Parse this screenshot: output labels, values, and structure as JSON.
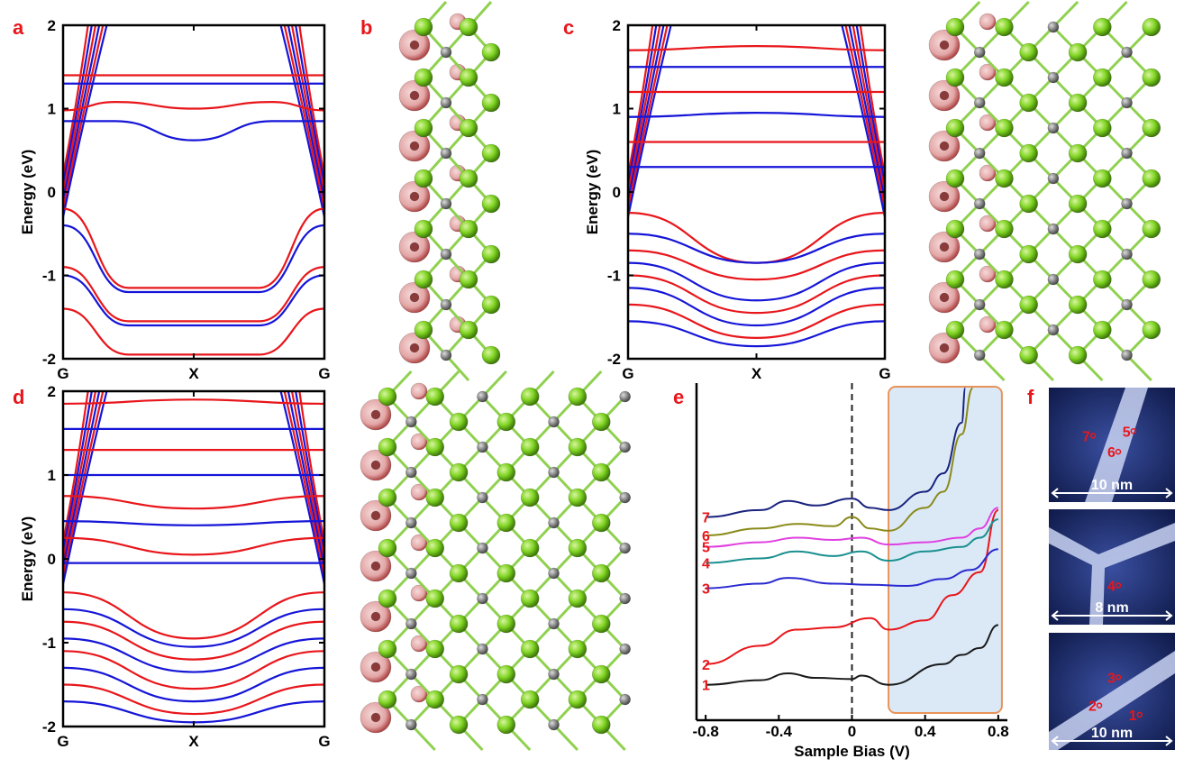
{
  "panel_labels": {
    "a": "a",
    "b": "b",
    "c": "c",
    "d": "d",
    "e": "e",
    "f": "f"
  },
  "colors": {
    "spin_up": "#e8161b",
    "spin_down": "#1515d8",
    "atom_light": "#7ed321",
    "atom_dark": "#808080",
    "atom_red": "#b84a4a",
    "stm_bg": "#1a2a6c"
  },
  "chart_data": [
    {
      "id": "a",
      "type": "line",
      "xlabel": "",
      "ylabel": "Energy (eV)",
      "ylim": [
        -2,
        2
      ],
      "yticks": [
        "-2",
        "-1",
        "0",
        "1",
        "2"
      ],
      "xtick_labels": [
        "G",
        "X",
        "G"
      ],
      "series": [
        {
          "values": [
            [
              0,
              1.4
            ],
            [
              0.5,
              1.4
            ],
            [
              1,
              1.4
            ]
          ]
        },
        {
          "values": [
            [
              0,
              1.3
            ],
            [
              0.5,
              1.3
            ],
            [
              1,
              1.3
            ]
          ]
        },
        {
          "values": [
            [
              0,
              0.98
            ],
            [
              0.2,
              1.08
            ],
            [
              0.5,
              1.0
            ],
            [
              0.8,
              1.08
            ],
            [
              1,
              0.98
            ]
          ]
        },
        {
          "values": [
            [
              0,
              0.85
            ],
            [
              0.2,
              0.85
            ],
            [
              0.5,
              0.62
            ],
            [
              0.8,
              0.85
            ],
            [
              1,
              0.85
            ]
          ]
        },
        {
          "values": [
            [
              0,
              -0.2
            ],
            [
              0.25,
              -1.15
            ],
            [
              0.5,
              -1.15
            ],
            [
              0.75,
              -1.15
            ],
            [
              1,
              -0.2
            ]
          ]
        },
        {
          "values": [
            [
              0,
              -0.4
            ],
            [
              0.25,
              -1.2
            ],
            [
              0.5,
              -1.2
            ],
            [
              0.75,
              -1.2
            ],
            [
              1,
              -0.4
            ]
          ]
        },
        {
          "values": [
            [
              0,
              -0.9
            ],
            [
              0.25,
              -1.55
            ],
            [
              0.5,
              -1.55
            ],
            [
              0.75,
              -1.55
            ],
            [
              1,
              -0.9
            ]
          ]
        },
        {
          "values": [
            [
              0,
              -1.0
            ],
            [
              0.25,
              -1.6
            ],
            [
              0.5,
              -1.6
            ],
            [
              0.75,
              -1.6
            ],
            [
              1,
              -1.0
            ]
          ]
        },
        {
          "values": [
            [
              0,
              -1.4
            ],
            [
              0.25,
              -1.95
            ],
            [
              0.5,
              -1.95
            ],
            [
              0.75,
              -1.95
            ],
            [
              1,
              -1.4
            ]
          ]
        }
      ]
    },
    {
      "id": "c",
      "type": "line",
      "xlabel": "",
      "ylabel": "Energy (eV)",
      "ylim": [
        -2,
        2
      ],
      "yticks": [
        "-2",
        "-1",
        "0",
        "1",
        "2"
      ],
      "xtick_labels": [
        "G",
        "X",
        "G"
      ],
      "series": [
        {
          "values": [
            [
              0,
              1.7
            ],
            [
              0.5,
              1.75
            ],
            [
              1,
              1.7
            ]
          ]
        },
        {
          "values": [
            [
              0,
              1.5
            ],
            [
              0.5,
              1.5
            ],
            [
              1,
              1.5
            ]
          ]
        },
        {
          "values": [
            [
              0,
              1.2
            ],
            [
              0.5,
              1.2
            ],
            [
              1,
              1.2
            ]
          ]
        },
        {
          "values": [
            [
              0,
              0.9
            ],
            [
              0.5,
              0.95
            ],
            [
              1,
              0.9
            ]
          ]
        },
        {
          "values": [
            [
              0,
              0.6
            ],
            [
              0.5,
              0.6
            ],
            [
              1,
              0.6
            ]
          ]
        },
        {
          "values": [
            [
              0,
              0.3
            ],
            [
              0.5,
              0.3
            ],
            [
              1,
              0.3
            ]
          ]
        },
        {
          "values": [
            [
              0,
              -0.25
            ],
            [
              0.5,
              -0.85
            ],
            [
              1,
              -0.25
            ]
          ]
        },
        {
          "values": [
            [
              0,
              -0.5
            ],
            [
              0.5,
              -0.85
            ],
            [
              1,
              -0.5
            ]
          ]
        },
        {
          "values": [
            [
              0,
              -0.7
            ],
            [
              0.5,
              -1.05
            ],
            [
              1,
              -0.7
            ]
          ]
        },
        {
          "values": [
            [
              0,
              -0.85
            ],
            [
              0.5,
              -1.3
            ],
            [
              1,
              -0.85
            ]
          ]
        },
        {
          "values": [
            [
              0,
              -1.0
            ],
            [
              0.5,
              -1.45
            ],
            [
              1,
              -1.0
            ]
          ]
        },
        {
          "values": [
            [
              0,
              -1.15
            ],
            [
              0.5,
              -1.6
            ],
            [
              1,
              -1.15
            ]
          ]
        },
        {
          "values": [
            [
              0,
              -1.35
            ],
            [
              0.5,
              -1.75
            ],
            [
              1,
              -1.35
            ]
          ]
        },
        {
          "values": [
            [
              0,
              -1.55
            ],
            [
              0.5,
              -1.85
            ],
            [
              1,
              -1.55
            ]
          ]
        }
      ]
    },
    {
      "id": "d",
      "type": "line",
      "xlabel": "",
      "ylabel": "Energy (eV)",
      "ylim": [
        -2,
        2
      ],
      "yticks": [
        "-2",
        "-1",
        "0",
        "1",
        "2"
      ],
      "xtick_labels": [
        "G",
        "X",
        "G"
      ],
      "series": [
        {
          "values": [
            [
              0,
              1.85
            ],
            [
              0.5,
              1.9
            ],
            [
              1,
              1.85
            ]
          ]
        },
        {
          "values": [
            [
              0,
              1.55
            ],
            [
              0.5,
              1.55
            ],
            [
              1,
              1.55
            ]
          ]
        },
        {
          "values": [
            [
              0,
              1.3
            ],
            [
              0.5,
              1.3
            ],
            [
              1,
              1.3
            ]
          ]
        },
        {
          "values": [
            [
              0,
              1.0
            ],
            [
              0.5,
              1.0
            ],
            [
              1,
              1.0
            ]
          ]
        },
        {
          "values": [
            [
              0,
              0.75
            ],
            [
              0.5,
              0.6
            ],
            [
              1,
              0.75
            ]
          ]
        },
        {
          "values": [
            [
              0,
              0.45
            ],
            [
              0.5,
              0.4
            ],
            [
              1,
              0.45
            ]
          ]
        },
        {
          "values": [
            [
              0,
              0.25
            ],
            [
              0.5,
              0.05
            ],
            [
              1,
              0.25
            ]
          ]
        },
        {
          "values": [
            [
              0,
              -0.05
            ],
            [
              0.5,
              -0.05
            ],
            [
              1,
              -0.05
            ]
          ]
        },
        {
          "values": [
            [
              0,
              -0.4
            ],
            [
              0.5,
              -0.95
            ],
            [
              1,
              -0.4
            ]
          ]
        },
        {
          "values": [
            [
              0,
              -0.6
            ],
            [
              0.5,
              -1.05
            ],
            [
              1,
              -0.6
            ]
          ]
        },
        {
          "values": [
            [
              0,
              -0.75
            ],
            [
              0.5,
              -1.2
            ],
            [
              1,
              -0.75
            ]
          ]
        },
        {
          "values": [
            [
              0,
              -0.95
            ],
            [
              0.5,
              -1.35
            ],
            [
              1,
              -0.95
            ]
          ]
        },
        {
          "values": [
            [
              0,
              -1.1
            ],
            [
              0.5,
              -1.55
            ],
            [
              1,
              -1.1
            ]
          ]
        },
        {
          "values": [
            [
              0,
              -1.3
            ],
            [
              0.5,
              -1.7
            ],
            [
              1,
              -1.3
            ]
          ]
        },
        {
          "values": [
            [
              0,
              -1.5
            ],
            [
              0.5,
              -1.85
            ],
            [
              1,
              -1.5
            ]
          ]
        },
        {
          "values": [
            [
              0,
              -1.7
            ],
            [
              0.5,
              -1.95
            ],
            [
              1,
              -1.7
            ]
          ]
        }
      ]
    },
    {
      "id": "e",
      "type": "line",
      "xlabel": "Sample Bias (V)",
      "ylabel": "",
      "xlim": [
        -0.85,
        0.85
      ],
      "xticks": [
        "-0.8",
        "-0.4",
        "0",
        "0.4",
        "0.8"
      ],
      "highlight_range": [
        0.2,
        0.82
      ],
      "dashed_line_x": 0,
      "series": [
        {
          "name": "1",
          "values": [
            [
              -0.8,
              0.6
            ],
            [
              -0.5,
              0.8
            ],
            [
              -0.35,
              1.1
            ],
            [
              -0.2,
              0.9
            ],
            [
              0,
              0.85
            ],
            [
              0.05,
              1.0
            ],
            [
              0.2,
              0.6
            ],
            [
              0.5,
              1.5
            ],
            [
              0.6,
              1.9
            ],
            [
              0.7,
              2.2
            ],
            [
              0.8,
              3.2
            ]
          ]
        },
        {
          "name": "2",
          "values": [
            [
              -0.8,
              1.5
            ],
            [
              -0.5,
              2.3
            ],
            [
              -0.3,
              3.0
            ],
            [
              -0.1,
              3.1
            ],
            [
              0.1,
              3.5
            ],
            [
              0.2,
              3.0
            ],
            [
              0.4,
              3.4
            ],
            [
              0.55,
              4.5
            ],
            [
              0.7,
              5.5
            ],
            [
              0.8,
              8.2
            ]
          ]
        },
        {
          "name": "3",
          "values": [
            [
              -0.8,
              4.8
            ],
            [
              -0.5,
              5.0
            ],
            [
              -0.35,
              5.25
            ],
            [
              -0.1,
              5.0
            ],
            [
              0.1,
              4.95
            ],
            [
              0.3,
              4.9
            ],
            [
              0.5,
              5.2
            ],
            [
              0.65,
              5.6
            ],
            [
              0.8,
              6.5
            ]
          ]
        },
        {
          "name": "4",
          "values": [
            [
              -0.8,
              5.9
            ],
            [
              -0.5,
              6.1
            ],
            [
              -0.3,
              6.4
            ],
            [
              -0.1,
              6.2
            ],
            [
              0.05,
              6.4
            ],
            [
              0.2,
              6.0
            ],
            [
              0.4,
              6.4
            ],
            [
              0.6,
              6.6
            ],
            [
              0.7,
              7.0
            ],
            [
              0.8,
              7.8
            ]
          ]
        },
        {
          "name": "5",
          "values": [
            [
              -0.8,
              6.6
            ],
            [
              -0.5,
              6.8
            ],
            [
              -0.3,
              7.0
            ],
            [
              -0.1,
              6.9
            ],
            [
              0.05,
              7.0
            ],
            [
              0.2,
              6.7
            ],
            [
              0.4,
              6.8
            ],
            [
              0.6,
              7.0
            ],
            [
              0.7,
              7.4
            ],
            [
              0.8,
              8.3
            ]
          ]
        },
        {
          "name": "6",
          "values": [
            [
              -0.8,
              7.1
            ],
            [
              -0.5,
              7.4
            ],
            [
              -0.3,
              7.6
            ],
            [
              -0.1,
              7.5
            ],
            [
              0.0,
              7.9
            ],
            [
              0.1,
              7.4
            ],
            [
              0.2,
              7.3
            ],
            [
              0.4,
              8.3
            ],
            [
              0.5,
              9.0
            ],
            [
              0.6,
              11.5
            ],
            [
              0.66,
              13.5
            ]
          ]
        },
        {
          "name": "7",
          "values": [
            [
              -0.8,
              7.9
            ],
            [
              -0.5,
              8.2
            ],
            [
              -0.35,
              8.6
            ],
            [
              -0.2,
              8.4
            ],
            [
              0.0,
              8.7
            ],
            [
              0.1,
              8.3
            ],
            [
              0.2,
              8.2
            ],
            [
              0.4,
              9.0
            ],
            [
              0.5,
              9.8
            ],
            [
              0.6,
              12.0
            ],
            [
              0.62,
              13.5
            ]
          ]
        }
      ]
    }
  ],
  "stm_images": [
    {
      "scale_label": "10 nm",
      "points": [
        "7",
        "5",
        "6"
      ]
    },
    {
      "scale_label": "8 nm",
      "points": [
        "4"
      ]
    },
    {
      "scale_label": "10 nm",
      "points": [
        "3",
        "2",
        "1"
      ]
    }
  ]
}
